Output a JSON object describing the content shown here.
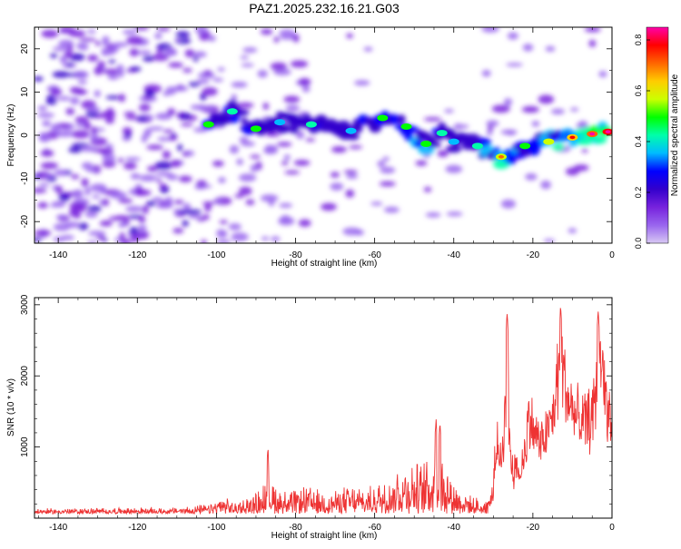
{
  "title": "PAZ1.2025.232.16.21.G03",
  "colors": {
    "snr_line": "#ee3333",
    "frame": "#000000",
    "colormap": [
      "#ffffff",
      "#d8c8f4",
      "#9966ee",
      "#7722dd",
      "#3300cc",
      "#0000ff",
      "#00bbff",
      "#00ffaa",
      "#00ff00",
      "#ccff00",
      "#ffcc00",
      "#ff6600",
      "#ff0000",
      "#ff00aa"
    ]
  },
  "chart_data": [
    {
      "type": "heatmap",
      "xlabel": "Height of straight line (km)",
      "ylabel": "Frequency (Hz)",
      "xlim": [
        -146,
        0
      ],
      "ylim": [
        -25,
        25
      ],
      "x_ticks": [
        -140,
        -120,
        -100,
        -80,
        -60,
        -40,
        -20,
        0
      ],
      "x_tick_labels": [
        "-140",
        "-120",
        "-100",
        "-80",
        "-60",
        "-40",
        "-20",
        "0"
      ],
      "y_ticks": [
        20,
        10,
        0,
        -10,
        -20
      ],
      "y_tick_labels": [
        "20",
        "10",
        "0",
        "-10",
        "-20"
      ],
      "colorbar": {
        "label": "Normalized spectral amplitude",
        "range": [
          0.0,
          0.85
        ],
        "ticks": [
          0.0,
          0.2,
          0.4,
          0.6,
          0.8
        ],
        "tick_labels": [
          "0.0",
          "0.2",
          "0.4",
          "0.6",
          "0.8"
        ]
      },
      "ridge": [
        {
          "x": -102,
          "y": 2.5,
          "amp": 0.35
        },
        {
          "x": -96,
          "y": 5.5,
          "amp": 0.3
        },
        {
          "x": -90,
          "y": 1.5,
          "amp": 0.35
        },
        {
          "x": -84,
          "y": 3.0,
          "amp": 0.25
        },
        {
          "x": -76,
          "y": 2.5,
          "amp": 0.3
        },
        {
          "x": -66,
          "y": 1.0,
          "amp": 0.25
        },
        {
          "x": -58,
          "y": 4.0,
          "amp": 0.35
        },
        {
          "x": -52,
          "y": 2.0,
          "amp": 0.35
        },
        {
          "x": -47,
          "y": -2.0,
          "amp": 0.4
        },
        {
          "x": -43,
          "y": 0.5,
          "amp": 0.3
        },
        {
          "x": -40,
          "y": -1.5,
          "amp": 0.25
        },
        {
          "x": -34,
          "y": -2.5,
          "amp": 0.3
        },
        {
          "x": -28,
          "y": -5.0,
          "amp": 0.5
        },
        {
          "x": -22,
          "y": -2.5,
          "amp": 0.35
        },
        {
          "x": -16,
          "y": -1.5,
          "amp": 0.45
        },
        {
          "x": -10,
          "y": -0.5,
          "amp": 0.55
        },
        {
          "x": -5,
          "y": 0.3,
          "amp": 0.65
        },
        {
          "x": -1,
          "y": 0.8,
          "amp": 0.75
        }
      ]
    },
    {
      "type": "line",
      "xlabel": "Height of straight line (km)",
      "ylabel": "SNR (10 * v/v)",
      "xlim": [
        -146,
        0
      ],
      "ylim": [
        0,
        3100
      ],
      "x_ticks": [
        -140,
        -120,
        -100,
        -80,
        -60,
        -40,
        -20,
        0
      ],
      "x_tick_labels": [
        "-140",
        "-120",
        "-100",
        "-80",
        "-60",
        "-40",
        "-20",
        "0"
      ],
      "y_ticks": [
        1000,
        2000,
        3000
      ],
      "y_tick_labels": [
        "1000",
        "2000",
        "3000"
      ],
      "envelope": [
        {
          "x": -146,
          "y": 130
        },
        {
          "x": -110,
          "y": 150
        },
        {
          "x": -101,
          "y": 200
        },
        {
          "x": -99,
          "y": 320
        },
        {
          "x": -95,
          "y": 220
        },
        {
          "x": -90,
          "y": 380
        },
        {
          "x": -87,
          "y": 650
        },
        {
          "x": -82,
          "y": 380
        },
        {
          "x": -77,
          "y": 480
        },
        {
          "x": -72,
          "y": 350
        },
        {
          "x": -67,
          "y": 480
        },
        {
          "x": -61,
          "y": 450
        },
        {
          "x": -57,
          "y": 650
        },
        {
          "x": -52,
          "y": 850
        },
        {
          "x": -48,
          "y": 800
        },
        {
          "x": -45,
          "y": 1050
        },
        {
          "x": -43,
          "y": 950
        },
        {
          "x": -40,
          "y": 550
        },
        {
          "x": -36,
          "y": 320
        },
        {
          "x": -32,
          "y": 250
        },
        {
          "x": -30,
          "y": 700
        },
        {
          "x": -29,
          "y": 1300
        },
        {
          "x": -28,
          "y": 900
        },
        {
          "x": -26.5,
          "y": 2500
        },
        {
          "x": -25.5,
          "y": 1000
        },
        {
          "x": -23,
          "y": 800
        },
        {
          "x": -21,
          "y": 1800
        },
        {
          "x": -18,
          "y": 1300
        },
        {
          "x": -15,
          "y": 1800
        },
        {
          "x": -13,
          "y": 2900
        },
        {
          "x": -11,
          "y": 2100
        },
        {
          "x": -8,
          "y": 1700
        },
        {
          "x": -5,
          "y": 1800
        },
        {
          "x": -3,
          "y": 2800
        },
        {
          "x": -1.5,
          "y": 2100
        },
        {
          "x": 0,
          "y": 1400
        }
      ],
      "peaks": [
        {
          "x": -87,
          "y": 1050
        },
        {
          "x": -44.5,
          "y": 1450
        },
        {
          "x": -43.5,
          "y": 1400
        },
        {
          "x": -26.5,
          "y": 2950
        },
        {
          "x": -13,
          "y": 3050
        },
        {
          "x": -3.5,
          "y": 2980
        }
      ]
    }
  ]
}
